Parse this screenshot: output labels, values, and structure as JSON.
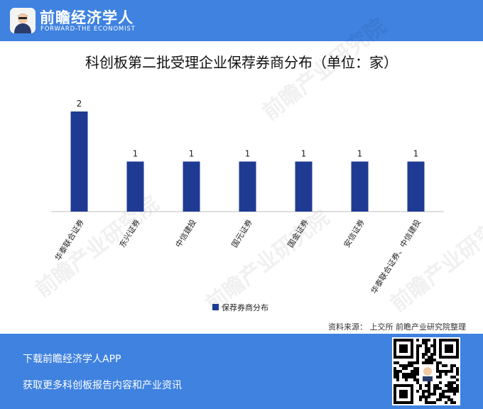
{
  "header": {
    "brand_name": "前瞻经济学人",
    "brand_sub": "FORWARD-THE ECONOMIST",
    "logo_icon": "economist-avatar-icon"
  },
  "chart_data": {
    "type": "bar",
    "title": "科创板第二批受理企业保荐券商分布（单位：家）",
    "categories": [
      "华泰联合证券",
      "东兴证券",
      "中信建投",
      "国元证券",
      "国金证券",
      "安信证券",
      "华泰联合证券、中信建投"
    ],
    "series": [
      {
        "name": "保荐券商分布",
        "values": [
          2,
          1,
          1,
          1,
          1,
          1,
          1
        ],
        "color": "#1f3a93"
      }
    ],
    "ylim": [
      0,
      2
    ],
    "grid": false,
    "legend": "bottom-center",
    "data_labels": true
  },
  "source": "资料来源：  上交所 前瞻产业研究院整理",
  "watermark": "前瞻产业研究院",
  "footer": {
    "line1": "下载前瞻经济学人APP",
    "line2": "获取更多科创板报告内容和产业资讯",
    "qr_icon": "qr-code-icon"
  },
  "colors": {
    "brand_blue": "#3f82e0",
    "bar": "#1f3a93"
  }
}
